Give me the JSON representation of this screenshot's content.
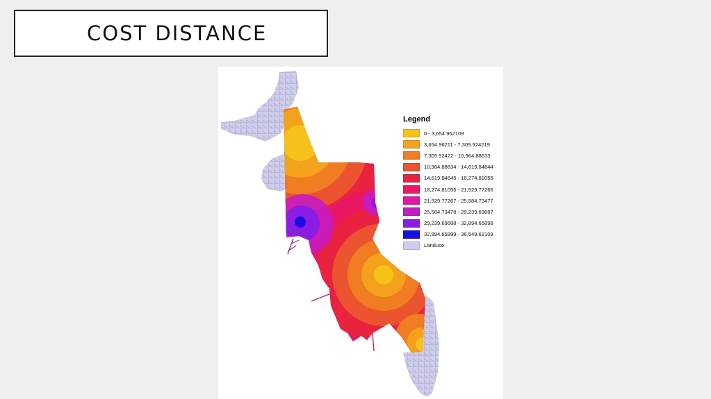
{
  "slide": {
    "title": "COST DISTANCE"
  },
  "legend": {
    "title": "Legend",
    "items": [
      {
        "label": "0 - 3,654.962109",
        "color": "#f6c21a"
      },
      {
        "label": "3,654.96211 - 7,309.924219",
        "color": "#f4a11c"
      },
      {
        "label": "7,309.92422 - 10,964.88633",
        "color": "#f07d22"
      },
      {
        "label": "10,964.88634 - 14,619.84844",
        "color": "#ec5430"
      },
      {
        "label": "14,619.84845 - 18,274.81055",
        "color": "#e9223f"
      },
      {
        "label": "18,274.81056 - 21,929.77266",
        "color": "#ea1762"
      },
      {
        "label": "21,929.77267 - 25,584.73477",
        "color": "#e417a0"
      },
      {
        "label": "25,584.73478 - 29,239.69687",
        "color": "#c81bc0"
      },
      {
        "label": "29,239.69688 - 32,894.65898",
        "color": "#8a1de2"
      },
      {
        "label": "32,894.65899 - 36,549.62109",
        "color": "#1a0ee6"
      },
      {
        "label": "Landuse",
        "color": "#cfcdec"
      }
    ]
  }
}
